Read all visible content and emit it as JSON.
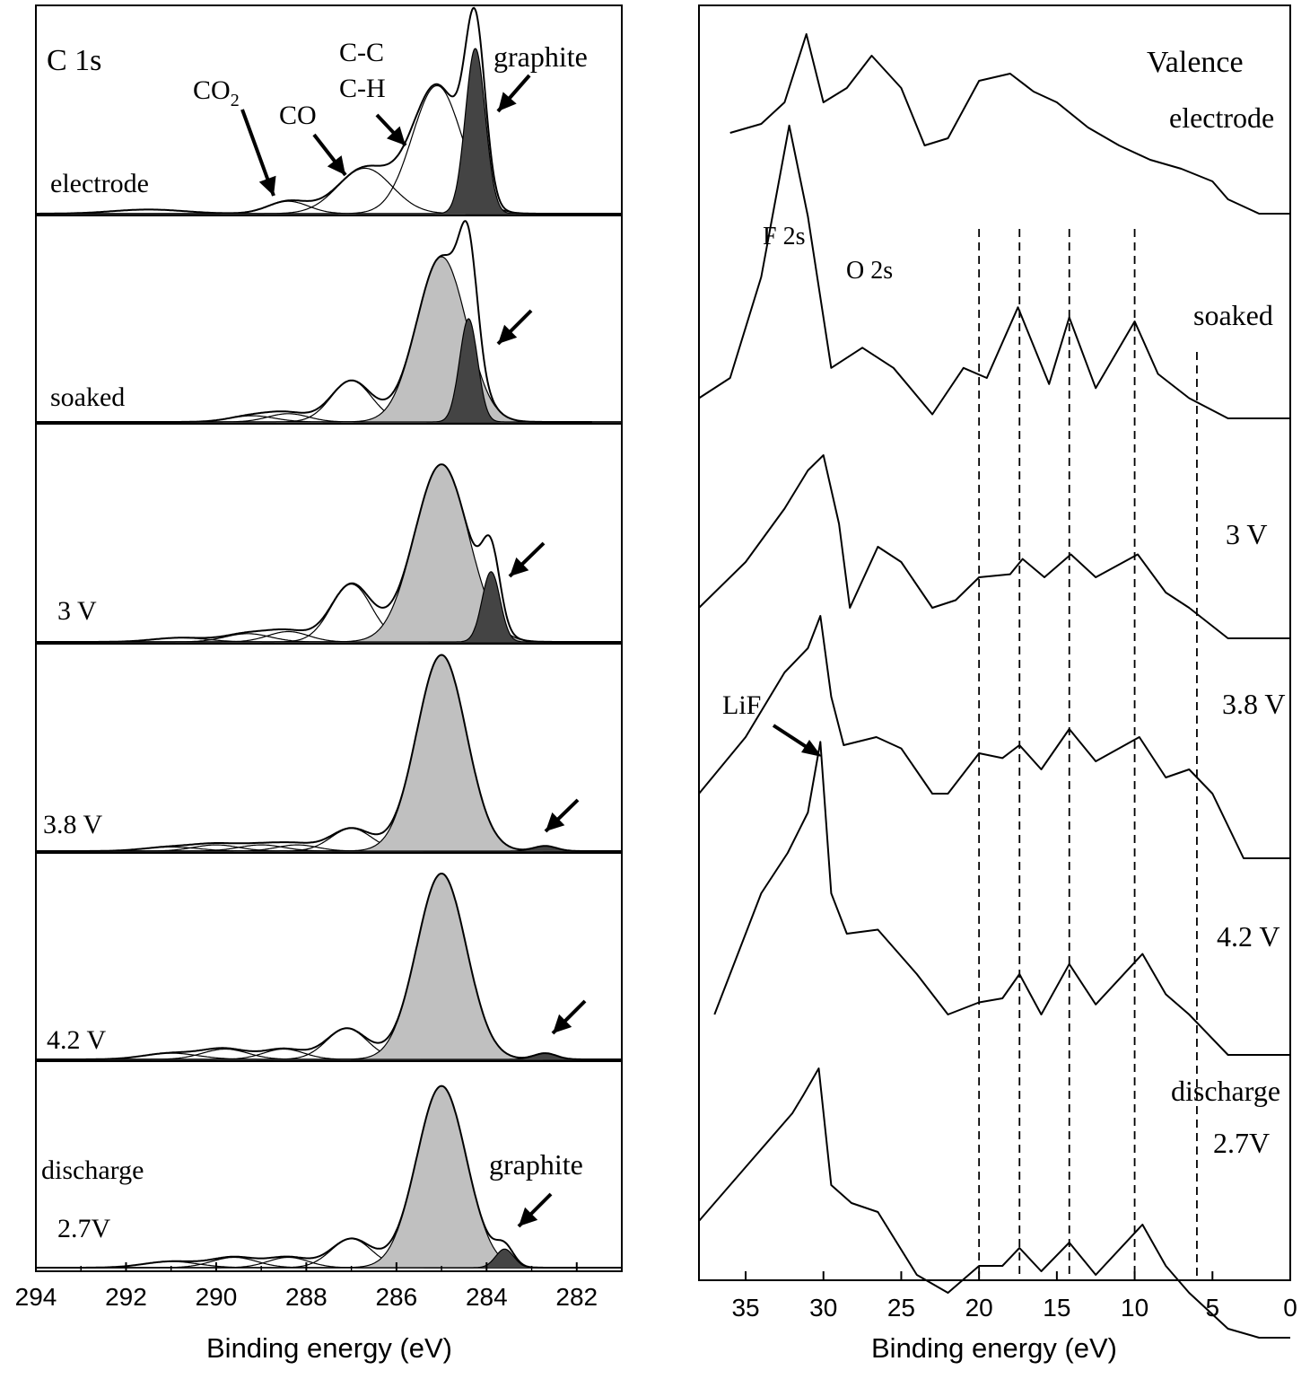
{
  "chart_data": [
    {
      "type": "line",
      "panel": "C 1s",
      "xlabel": "Binding energy (eV)",
      "xlim": [
        294,
        281
      ],
      "x_reversed": true,
      "xticks": [
        294,
        292,
        290,
        288,
        286,
        284,
        282
      ],
      "ylabel": "",
      "panel_label": "C 1s",
      "series": [
        {
          "name": "electrode",
          "label": "electrode",
          "components": [
            {
              "center": 291.5,
              "height": 0.02,
              "width": 0.8,
              "fill": "none"
            },
            {
              "center": 288.4,
              "height": 0.06,
              "width": 0.45,
              "fill": "none"
            },
            {
              "center": 286.7,
              "height": 0.22,
              "width": 0.6,
              "fill": "none"
            },
            {
              "center": 285.1,
              "height": 0.62,
              "width": 0.55,
              "fill": "none"
            },
            {
              "center": 284.25,
              "height": 0.8,
              "width": 0.22,
              "fill": "#444444"
            }
          ]
        },
        {
          "name": "soaked",
          "label": "soaked",
          "components": [
            {
              "center": 289.2,
              "height": 0.03,
              "width": 0.5,
              "fill": "none"
            },
            {
              "center": 288.4,
              "height": 0.04,
              "width": 0.45,
              "fill": "none"
            },
            {
              "center": 287.0,
              "height": 0.2,
              "width": 0.45,
              "fill": "none"
            },
            {
              "center": 285.0,
              "height": 0.8,
              "width": 0.55,
              "fill": "#c0c0c0"
            },
            {
              "center": 284.4,
              "height": 0.5,
              "width": 0.2,
              "fill": "#444444"
            }
          ]
        },
        {
          "name": "3 V",
          "label": "3 V",
          "components": [
            {
              "center": 290.8,
              "height": 0.02,
              "width": 0.6,
              "fill": "none"
            },
            {
              "center": 289.3,
              "height": 0.04,
              "width": 0.5,
              "fill": "none"
            },
            {
              "center": 288.4,
              "height": 0.05,
              "width": 0.45,
              "fill": "none"
            },
            {
              "center": 287.0,
              "height": 0.28,
              "width": 0.45,
              "fill": "none"
            },
            {
              "center": 285.0,
              "height": 0.86,
              "width": 0.6,
              "fill": "#c0c0c0"
            },
            {
              "center": 283.9,
              "height": 0.34,
              "width": 0.2,
              "fill": "#444444"
            }
          ]
        },
        {
          "name": "3.8 V",
          "label": "3.8 V",
          "components": [
            {
              "center": 291.0,
              "height": 0.02,
              "width": 0.6,
              "fill": "none"
            },
            {
              "center": 290.0,
              "height": 0.03,
              "width": 0.5,
              "fill": "none"
            },
            {
              "center": 289.0,
              "height": 0.03,
              "width": 0.5,
              "fill": "none"
            },
            {
              "center": 288.2,
              "height": 0.03,
              "width": 0.45,
              "fill": "none"
            },
            {
              "center": 287.0,
              "height": 0.11,
              "width": 0.45,
              "fill": "none"
            },
            {
              "center": 285.0,
              "height": 0.95,
              "width": 0.55,
              "fill": "#c0c0c0"
            },
            {
              "center": 282.7,
              "height": 0.025,
              "width": 0.25,
              "fill": "#444444"
            }
          ]
        },
        {
          "name": "4.2 V",
          "label": "4.2 V",
          "components": [
            {
              "center": 291.0,
              "height": 0.03,
              "width": 0.6,
              "fill": "none"
            },
            {
              "center": 289.8,
              "height": 0.05,
              "width": 0.5,
              "fill": "none"
            },
            {
              "center": 288.5,
              "height": 0.05,
              "width": 0.45,
              "fill": "none"
            },
            {
              "center": 287.1,
              "height": 0.15,
              "width": 0.45,
              "fill": "none"
            },
            {
              "center": 285.0,
              "height": 0.9,
              "width": 0.55,
              "fill": "#c0c0c0"
            },
            {
              "center": 282.7,
              "height": 0.03,
              "width": 0.25,
              "fill": "#444444"
            }
          ]
        },
        {
          "name": "discharge 2.7V",
          "label": "discharge",
          "label2": "2.7V",
          "components": [
            {
              "center": 291.0,
              "height": 0.03,
              "width": 0.6,
              "fill": "none"
            },
            {
              "center": 289.6,
              "height": 0.05,
              "width": 0.5,
              "fill": "none"
            },
            {
              "center": 288.4,
              "height": 0.05,
              "width": 0.45,
              "fill": "none"
            },
            {
              "center": 287.0,
              "height": 0.14,
              "width": 0.45,
              "fill": "none"
            },
            {
              "center": 285.0,
              "height": 0.88,
              "width": 0.55,
              "fill": "#c0c0c0"
            },
            {
              "center": 283.6,
              "height": 0.09,
              "width": 0.2,
              "fill": "#444444"
            }
          ]
        }
      ],
      "annotations": [
        "CO",
        "C-C",
        "C-H",
        "graphite",
        "graphite"
      ],
      "annotation_co2": {
        "base": "CO",
        "subscript": "2"
      }
    },
    {
      "type": "line",
      "panel": "Valence",
      "xlabel": "Binding energy (eV)",
      "xlim": [
        38,
        0
      ],
      "x_reversed": true,
      "xticks": [
        35,
        30,
        25,
        20,
        15,
        10,
        5,
        0
      ],
      "ylabel": "",
      "panel_label": "Valence",
      "dashed_lines_x": [
        20,
        17.4,
        14.2,
        10,
        6
      ],
      "series": [
        {
          "name": "electrode",
          "label": "electrode",
          "points": [
            [
              36,
              0.45
            ],
            [
              34,
              0.5
            ],
            [
              32.5,
              0.62
            ],
            [
              31.1,
              1.0
            ],
            [
              30,
              0.62
            ],
            [
              28.5,
              0.7
            ],
            [
              26.9,
              0.88
            ],
            [
              25,
              0.7
            ],
            [
              23.5,
              0.38
            ],
            [
              22,
              0.42
            ],
            [
              20,
              0.74
            ],
            [
              18,
              0.78
            ],
            [
              16.5,
              0.68
            ],
            [
              15,
              0.62
            ],
            [
              13,
              0.48
            ],
            [
              11,
              0.38
            ],
            [
              9,
              0.3
            ],
            [
              7,
              0.25
            ],
            [
              5,
              0.18
            ],
            [
              4,
              0.08
            ],
            [
              2,
              0.0
            ],
            [
              0,
              0.0
            ]
          ]
        },
        {
          "name": "soaked",
          "label": "soaked",
          "points": [
            [
              38,
              0.1
            ],
            [
              36,
              0.2
            ],
            [
              34,
              0.7
            ],
            [
              32.2,
              1.45
            ],
            [
              31,
              1.0
            ],
            [
              29.5,
              0.25
            ],
            [
              27.5,
              0.35
            ],
            [
              25.5,
              0.25
            ],
            [
              23,
              0.02
            ],
            [
              21,
              0.25
            ],
            [
              19.5,
              0.2
            ],
            [
              17.5,
              0.55
            ],
            [
              15.5,
              0.17
            ],
            [
              14.2,
              0.5
            ],
            [
              12.5,
              0.15
            ],
            [
              10,
              0.48
            ],
            [
              8.5,
              0.22
            ],
            [
              6.5,
              0.1
            ],
            [
              4,
              0.0
            ],
            [
              0,
              0.0
            ]
          ]
        },
        {
          "name": "3 V",
          "label": "3 V",
          "points": [
            [
              38,
              0.0
            ],
            [
              35,
              0.3
            ],
            [
              32.5,
              0.65
            ],
            [
              31,
              0.9
            ],
            [
              30,
              1.0
            ],
            [
              29,
              0.55
            ],
            [
              28.3,
              0.0
            ],
            [
              26.5,
              0.4
            ],
            [
              25,
              0.3
            ],
            [
              23,
              0.0
            ],
            [
              21.5,
              0.05
            ],
            [
              20,
              0.2
            ],
            [
              18,
              0.22
            ],
            [
              17.2,
              0.32
            ],
            [
              15.8,
              0.2
            ],
            [
              14.1,
              0.35
            ],
            [
              12.5,
              0.2
            ],
            [
              9.8,
              0.35
            ],
            [
              8,
              0.1
            ],
            [
              6.5,
              0.0
            ],
            [
              4,
              -0.2
            ],
            [
              0,
              -0.2
            ]
          ]
        },
        {
          "name": "3.8 V",
          "label": "3.8 V",
          "points": [
            [
              38,
              0.0
            ],
            [
              35,
              0.35
            ],
            [
              32.5,
              0.75
            ],
            [
              31,
              0.9
            ],
            [
              30.2,
              1.1
            ],
            [
              29.5,
              0.6
            ],
            [
              28.7,
              0.3
            ],
            [
              26.6,
              0.35
            ],
            [
              25,
              0.28
            ],
            [
              23,
              0.0
            ],
            [
              22,
              0.0
            ],
            [
              20,
              0.25
            ],
            [
              18.5,
              0.22
            ],
            [
              17.4,
              0.3
            ],
            [
              16,
              0.15
            ],
            [
              14.2,
              0.4
            ],
            [
              12.5,
              0.2
            ],
            [
              9.7,
              0.35
            ],
            [
              8,
              0.1
            ],
            [
              6.5,
              0.15
            ],
            [
              5,
              0.0
            ],
            [
              3,
              -0.4
            ],
            [
              0,
              -0.4
            ]
          ]
        },
        {
          "name": "4.2 V",
          "label": "4.2 V",
          "points": [
            [
              37,
              0.0
            ],
            [
              34,
              0.6
            ],
            [
              32.3,
              0.8
            ],
            [
              31,
              1.0
            ],
            [
              30.2,
              1.35
            ],
            [
              29.5,
              0.6
            ],
            [
              28.5,
              0.4
            ],
            [
              26.5,
              0.42
            ],
            [
              24,
              0.2
            ],
            [
              22,
              0.0
            ],
            [
              20,
              0.06
            ],
            [
              18.5,
              0.08
            ],
            [
              17.4,
              0.2
            ],
            [
              16,
              0.0
            ],
            [
              14.2,
              0.25
            ],
            [
              12.5,
              0.05
            ],
            [
              9.5,
              0.3
            ],
            [
              8,
              0.1
            ],
            [
              6.5,
              0.0
            ],
            [
              4,
              -0.2
            ],
            [
              0,
              -0.2
            ]
          ]
        },
        {
          "name": "discharge 2.7V",
          "label": "discharge",
          "label2": "2.7V",
          "points": [
            [
              38,
              0.3
            ],
            [
              35,
              0.6
            ],
            [
              32,
              0.9
            ],
            [
              31.3,
              1.0
            ],
            [
              30.3,
              1.15
            ],
            [
              29.5,
              0.5
            ],
            [
              28.2,
              0.4
            ],
            [
              26.5,
              0.35
            ],
            [
              24,
              0.0
            ],
            [
              22,
              -0.1
            ],
            [
              20,
              0.05
            ],
            [
              18.5,
              0.05
            ],
            [
              17.4,
              0.15
            ],
            [
              16,
              0.02
            ],
            [
              14.2,
              0.18
            ],
            [
              12.5,
              0.0
            ],
            [
              9.5,
              0.28
            ],
            [
              8,
              0.05
            ],
            [
              6.5,
              -0.1
            ],
            [
              4,
              -0.3
            ],
            [
              2,
              -0.35
            ],
            [
              0,
              -0.35
            ]
          ]
        }
      ],
      "annotations": [
        "F 2s",
        "O 2s",
        "LiF"
      ]
    }
  ]
}
